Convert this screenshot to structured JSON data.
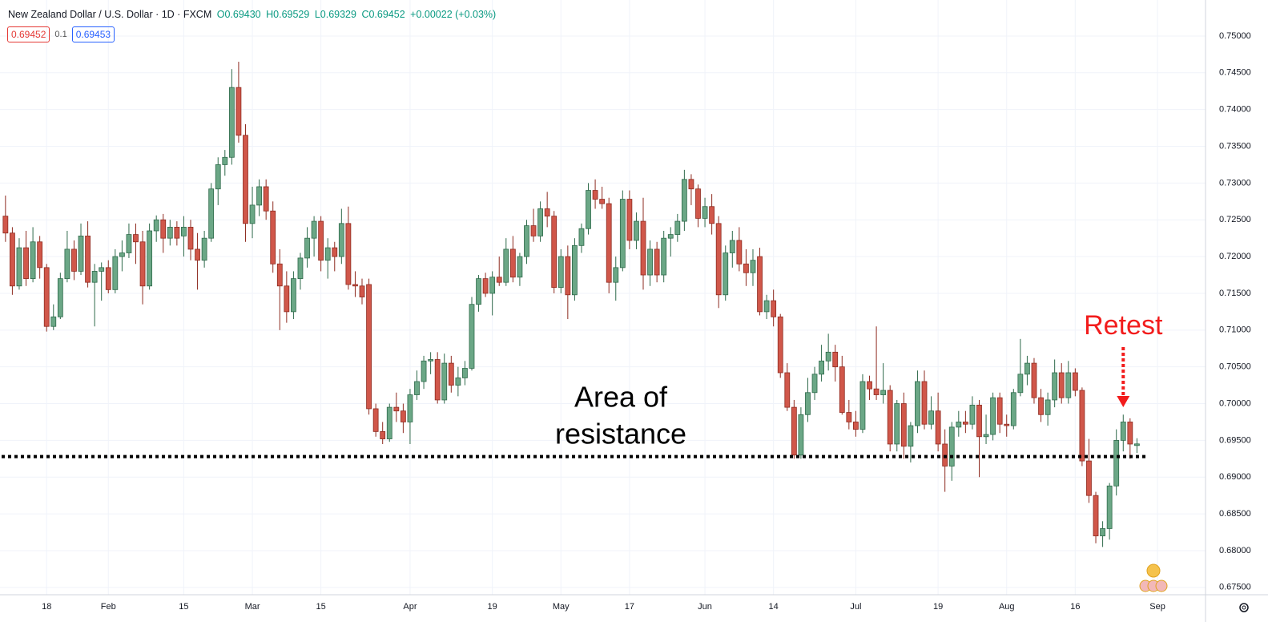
{
  "chart_data": {
    "type": "candlestick",
    "header": {
      "title": "New Zealand Dollar / U.S. Dollar · 1D · FXCM",
      "open": "O0.69430",
      "high": "H0.69529",
      "low": "L0.69329",
      "close": "C0.69452",
      "change": "+0.00022 (+0.03%)"
    },
    "sell_price": "0.69452",
    "spread": "0.1",
    "buy_price": "0.69453",
    "up_color": "#6ba786",
    "down_color": "#d0574a",
    "candles": [
      [
        0.7255,
        0.7283,
        0.722,
        0.7232
      ],
      [
        0.7232,
        0.724,
        0.7148,
        0.716
      ],
      [
        0.716,
        0.7225,
        0.7155,
        0.7212
      ],
      [
        0.7212,
        0.7235,
        0.716,
        0.717
      ],
      [
        0.717,
        0.724,
        0.7165,
        0.722
      ],
      [
        0.722,
        0.7228,
        0.717,
        0.7185
      ],
      [
        0.7185,
        0.719,
        0.7098,
        0.7105
      ],
      [
        0.7105,
        0.7135,
        0.71,
        0.7118
      ],
      [
        0.7118,
        0.7178,
        0.7115,
        0.717
      ],
      [
        0.717,
        0.7235,
        0.7165,
        0.721
      ],
      [
        0.721,
        0.7222,
        0.7168,
        0.718
      ],
      [
        0.718,
        0.7245,
        0.7175,
        0.7228
      ],
      [
        0.7228,
        0.7248,
        0.7158,
        0.7165
      ],
      [
        0.7165,
        0.719,
        0.7105,
        0.718
      ],
      [
        0.718,
        0.7192,
        0.714,
        0.7185
      ],
      [
        0.7185,
        0.7195,
        0.715,
        0.7155
      ],
      [
        0.7155,
        0.721,
        0.715,
        0.72
      ],
      [
        0.72,
        0.7222,
        0.718,
        0.7205
      ],
      [
        0.7205,
        0.7245,
        0.7198,
        0.723
      ],
      [
        0.723,
        0.7245,
        0.719,
        0.722
      ],
      [
        0.722,
        0.7235,
        0.7135,
        0.716
      ],
      [
        0.716,
        0.7245,
        0.7155,
        0.7235
      ],
      [
        0.7235,
        0.7256,
        0.722,
        0.725
      ],
      [
        0.725,
        0.7258,
        0.7205,
        0.7225
      ],
      [
        0.7225,
        0.725,
        0.7215,
        0.724
      ],
      [
        0.724,
        0.7248,
        0.7215,
        0.7225
      ],
      [
        0.7228,
        0.7255,
        0.72,
        0.724
      ],
      [
        0.724,
        0.725,
        0.7195,
        0.721
      ],
      [
        0.721,
        0.7232,
        0.7155,
        0.7195
      ],
      [
        0.7195,
        0.7235,
        0.7185,
        0.7225
      ],
      [
        0.7225,
        0.73,
        0.722,
        0.7292
      ],
      [
        0.7292,
        0.7335,
        0.727,
        0.7325
      ],
      [
        0.7325,
        0.7345,
        0.731,
        0.7335
      ],
      [
        0.7335,
        0.7455,
        0.7325,
        0.743
      ],
      [
        0.743,
        0.7465,
        0.7355,
        0.7365
      ],
      [
        0.7365,
        0.738,
        0.722,
        0.7245
      ],
      [
        0.7245,
        0.7295,
        0.7225,
        0.727
      ],
      [
        0.727,
        0.7305,
        0.7255,
        0.7295
      ],
      [
        0.7295,
        0.7305,
        0.725,
        0.7262
      ],
      [
        0.7262,
        0.7275,
        0.7178,
        0.719
      ],
      [
        0.719,
        0.721,
        0.71,
        0.716
      ],
      [
        0.716,
        0.718,
        0.711,
        0.7125
      ],
      [
        0.7125,
        0.718,
        0.7115,
        0.717
      ],
      [
        0.717,
        0.7205,
        0.7155,
        0.7198
      ],
      [
        0.7198,
        0.724,
        0.7185,
        0.7225
      ],
      [
        0.7225,
        0.7255,
        0.72,
        0.7248
      ],
      [
        0.7248,
        0.7255,
        0.718,
        0.7195
      ],
      [
        0.7195,
        0.7225,
        0.717,
        0.7212
      ],
      [
        0.7212,
        0.722,
        0.718,
        0.72
      ],
      [
        0.72,
        0.7265,
        0.719,
        0.7245
      ],
      [
        0.7245,
        0.7268,
        0.7155,
        0.7162
      ],
      [
        0.7162,
        0.718,
        0.7145,
        0.716
      ],
      [
        0.716,
        0.717,
        0.7135,
        0.7145
      ],
      [
        0.7162,
        0.717,
        0.6985,
        0.6993
      ],
      [
        0.6993,
        0.7,
        0.6955,
        0.6962
      ],
      [
        0.6962,
        0.6975,
        0.6945,
        0.6952
      ],
      [
        0.6952,
        0.7,
        0.6948,
        0.6995
      ],
      [
        0.6995,
        0.7015,
        0.6975,
        0.699
      ],
      [
        0.699,
        0.7,
        0.696,
        0.6975
      ],
      [
        0.6975,
        0.702,
        0.6945,
        0.7012
      ],
      [
        0.7012,
        0.7045,
        0.7005,
        0.703
      ],
      [
        0.703,
        0.7065,
        0.702,
        0.7058
      ],
      [
        0.7058,
        0.707,
        0.704,
        0.706
      ],
      [
        0.706,
        0.707,
        0.7,
        0.7005
      ],
      [
        0.7005,
        0.7068,
        0.7,
        0.7055
      ],
      [
        0.7055,
        0.7065,
        0.7015,
        0.7025
      ],
      [
        0.7025,
        0.705,
        0.701,
        0.7035
      ],
      [
        0.7035,
        0.7058,
        0.7025,
        0.7048
      ],
      [
        0.7048,
        0.7145,
        0.7045,
        0.7135
      ],
      [
        0.7135,
        0.7175,
        0.7125,
        0.717
      ],
      [
        0.717,
        0.7178,
        0.7145,
        0.715
      ],
      [
        0.715,
        0.718,
        0.712,
        0.7172
      ],
      [
        0.7172,
        0.72,
        0.716,
        0.7165
      ],
      [
        0.7165,
        0.7225,
        0.716,
        0.721
      ],
      [
        0.721,
        0.7228,
        0.7165,
        0.7172
      ],
      [
        0.7172,
        0.7205,
        0.716,
        0.72
      ],
      [
        0.72,
        0.725,
        0.719,
        0.7242
      ],
      [
        0.7242,
        0.7265,
        0.722,
        0.7228
      ],
      [
        0.7228,
        0.7275,
        0.722,
        0.7265
      ],
      [
        0.7265,
        0.7288,
        0.724,
        0.7255
      ],
      [
        0.7255,
        0.7262,
        0.715,
        0.7158
      ],
      [
        0.7158,
        0.721,
        0.715,
        0.72
      ],
      [
        0.72,
        0.7215,
        0.7115,
        0.7148
      ],
      [
        0.7148,
        0.7225,
        0.714,
        0.7215
      ],
      [
        0.7215,
        0.7245,
        0.7205,
        0.7238
      ],
      [
        0.7238,
        0.73,
        0.723,
        0.729
      ],
      [
        0.729,
        0.7305,
        0.7265,
        0.7278
      ],
      [
        0.7278,
        0.7295,
        0.7265,
        0.7272
      ],
      [
        0.7272,
        0.728,
        0.715,
        0.7165
      ],
      [
        0.7165,
        0.72,
        0.714,
        0.7185
      ],
      [
        0.7185,
        0.729,
        0.718,
        0.7278
      ],
      [
        0.7278,
        0.729,
        0.721,
        0.7222
      ],
      [
        0.7222,
        0.726,
        0.721,
        0.7248
      ],
      [
        0.7248,
        0.728,
        0.7155,
        0.7175
      ],
      [
        0.7175,
        0.7222,
        0.716,
        0.721
      ],
      [
        0.721,
        0.722,
        0.7165,
        0.7175
      ],
      [
        0.7175,
        0.7235,
        0.7165,
        0.7225
      ],
      [
        0.7225,
        0.724,
        0.72,
        0.723
      ],
      [
        0.723,
        0.7258,
        0.722,
        0.7248
      ],
      [
        0.7248,
        0.7318,
        0.7235,
        0.7305
      ],
      [
        0.7305,
        0.7312,
        0.727,
        0.7292
      ],
      [
        0.7292,
        0.7298,
        0.724,
        0.7252
      ],
      [
        0.7252,
        0.728,
        0.724,
        0.7268
      ],
      [
        0.7268,
        0.7285,
        0.723,
        0.7245
      ],
      [
        0.7245,
        0.7255,
        0.713,
        0.7148
      ],
      [
        0.7148,
        0.7215,
        0.714,
        0.7205
      ],
      [
        0.7205,
        0.7235,
        0.7185,
        0.7222
      ],
      [
        0.7222,
        0.724,
        0.718,
        0.719
      ],
      [
        0.719,
        0.721,
        0.716,
        0.7178
      ],
      [
        0.7178,
        0.721,
        0.716,
        0.7195
      ],
      [
        0.72,
        0.7212,
        0.712,
        0.7125
      ],
      [
        0.7125,
        0.7148,
        0.7115,
        0.714
      ],
      [
        0.714,
        0.7155,
        0.7105,
        0.7118
      ],
      [
        0.7118,
        0.7122,
        0.7035,
        0.7042
      ],
      [
        0.7042,
        0.7055,
        0.699,
        0.6995
      ],
      [
        0.6995,
        0.7005,
        0.6925,
        0.693
      ],
      [
        0.693,
        0.6995,
        0.6925,
        0.6985
      ],
      [
        0.6985,
        0.7035,
        0.6975,
        0.7015
      ],
      [
        0.7015,
        0.705,
        0.7005,
        0.704
      ],
      [
        0.704,
        0.708,
        0.703,
        0.7058
      ],
      [
        0.7058,
        0.7095,
        0.7045,
        0.707
      ],
      [
        0.707,
        0.708,
        0.703,
        0.705
      ],
      [
        0.705,
        0.7065,
        0.6985,
        0.6988
      ],
      [
        0.6988,
        0.7005,
        0.6965,
        0.6975
      ],
      [
        0.6975,
        0.699,
        0.6955,
        0.6965
      ],
      [
        0.6965,
        0.704,
        0.696,
        0.703
      ],
      [
        0.703,
        0.7038,
        0.7005,
        0.702
      ],
      [
        0.702,
        0.7105,
        0.7005,
        0.7012
      ],
      [
        0.7012,
        0.7055,
        0.7,
        0.7018
      ],
      [
        0.7018,
        0.7025,
        0.6935,
        0.6945
      ],
      [
        0.6945,
        0.7005,
        0.6935,
        0.7
      ],
      [
        0.7,
        0.7015,
        0.6925,
        0.6942
      ],
      [
        0.6942,
        0.6975,
        0.692,
        0.697
      ],
      [
        0.697,
        0.7045,
        0.696,
        0.703
      ],
      [
        0.703,
        0.7045,
        0.6965,
        0.6972
      ],
      [
        0.6972,
        0.701,
        0.6965,
        0.699
      ],
      [
        0.699,
        0.7015,
        0.6935,
        0.6945
      ],
      [
        0.6945,
        0.6965,
        0.688,
        0.6915
      ],
      [
        0.6915,
        0.6975,
        0.6895,
        0.6968
      ],
      [
        0.6968,
        0.699,
        0.6955,
        0.6975
      ],
      [
        0.6975,
        0.699,
        0.696,
        0.6972
      ],
      [
        0.6972,
        0.701,
        0.6965,
        0.6998
      ],
      [
        0.6998,
        0.7005,
        0.69,
        0.6955
      ],
      [
        0.6955,
        0.6985,
        0.6945,
        0.6958
      ],
      [
        0.6958,
        0.7015,
        0.695,
        0.7008
      ],
      [
        0.7008,
        0.7015,
        0.696,
        0.6972
      ],
      [
        0.6972,
        0.6985,
        0.6955,
        0.697
      ],
      [
        0.697,
        0.702,
        0.6965,
        0.7015
      ],
      [
        0.7015,
        0.7088,
        0.701,
        0.704
      ],
      [
        0.704,
        0.7065,
        0.7025,
        0.7055
      ],
      [
        0.7055,
        0.7062,
        0.7,
        0.7008
      ],
      [
        0.7008,
        0.702,
        0.6975,
        0.6985
      ],
      [
        0.6985,
        0.7015,
        0.697,
        0.7005
      ],
      [
        0.7005,
        0.706,
        0.6995,
        0.7042
      ],
      [
        0.7042,
        0.7055,
        0.7,
        0.7008
      ],
      [
        0.7008,
        0.7058,
        0.7,
        0.7042
      ],
      [
        0.7042,
        0.7048,
        0.701,
        0.7018
      ],
      [
        0.7018,
        0.7022,
        0.6915,
        0.6922
      ],
      [
        0.6922,
        0.6952,
        0.6865,
        0.6875
      ],
      [
        0.6875,
        0.688,
        0.681,
        0.682
      ],
      [
        0.682,
        0.684,
        0.6805,
        0.683
      ],
      [
        0.683,
        0.6892,
        0.6815,
        0.6888
      ],
      [
        0.6888,
        0.6965,
        0.6875,
        0.695
      ],
      [
        0.695,
        0.6985,
        0.6935,
        0.6975
      ],
      [
        0.6975,
        0.698,
        0.6925,
        0.6945
      ],
      [
        0.6943,
        0.69529,
        0.69329,
        0.69452
      ]
    ],
    "xlim": [
      -0.8,
      175
    ],
    "xticks": [
      {
        "value": 6,
        "label": "18"
      },
      {
        "value": 15,
        "label": "Feb"
      },
      {
        "value": 26,
        "label": "15"
      },
      {
        "value": 36,
        "label": "Mar"
      },
      {
        "value": 46,
        "label": "15"
      },
      {
        "value": 59,
        "label": "Apr"
      },
      {
        "value": 71,
        "label": "19"
      },
      {
        "value": 81,
        "label": "May"
      },
      {
        "value": 91,
        "label": "17"
      },
      {
        "value": 102,
        "label": "Jun"
      },
      {
        "value": 112,
        "label": "14"
      },
      {
        "value": 124,
        "label": "Jul"
      },
      {
        "value": 136,
        "label": "19"
      },
      {
        "value": 146,
        "label": "Aug"
      },
      {
        "value": 156,
        "label": "16"
      },
      {
        "value": 168,
        "label": "Sep"
      }
    ],
    "ylim": [
      0.674,
      0.7549
    ],
    "yticks": [
      {
        "value": 0.675,
        "label": "0.67500"
      },
      {
        "value": 0.68,
        "label": "0.68000"
      },
      {
        "value": 0.685,
        "label": "0.68500"
      },
      {
        "value": 0.69,
        "label": "0.69000"
      },
      {
        "value": 0.695,
        "label": "0.69500"
      },
      {
        "value": 0.7,
        "label": "0.70000"
      },
      {
        "value": 0.705,
        "label": "0.70500"
      },
      {
        "value": 0.71,
        "label": "0.71000"
      },
      {
        "value": 0.715,
        "label": "0.71500"
      },
      {
        "value": 0.72,
        "label": "0.72000"
      },
      {
        "value": 0.725,
        "label": "0.72500"
      },
      {
        "value": 0.73,
        "label": "0.73000"
      },
      {
        "value": 0.735,
        "label": "0.73500"
      },
      {
        "value": 0.74,
        "label": "0.74000"
      },
      {
        "value": 0.745,
        "label": "0.74500"
      },
      {
        "value": 0.75,
        "label": "0.75000"
      }
    ],
    "grid": true,
    "resistance_level": 0.6928,
    "resistance_label": [
      "Area of",
      "resistance"
    ],
    "retest_label": "Retest",
    "retest_candle": 163
  }
}
